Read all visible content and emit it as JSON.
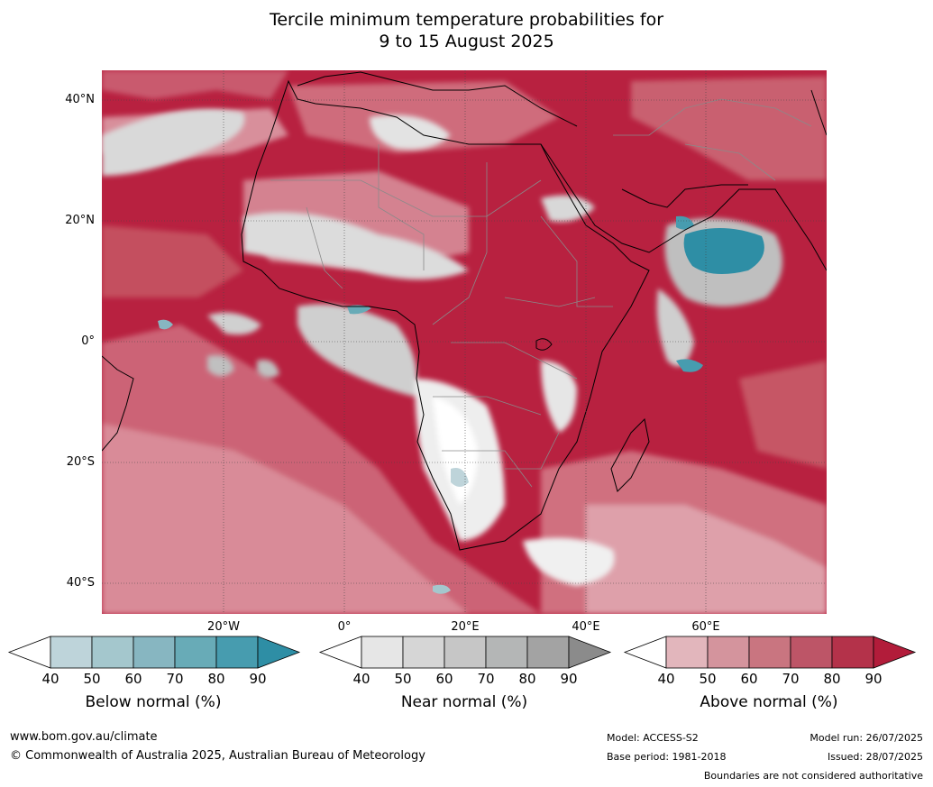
{
  "title_line1": "Tercile minimum temperature probabilities for",
  "title_line2": "9 to 15 August 2025",
  "lat_labels": [
    "40°N",
    "20°N",
    "0°",
    "20°S",
    "40°S"
  ],
  "lon_labels": [
    "20°W",
    "0°",
    "20°E",
    "40°E",
    "60°E"
  ],
  "legend": {
    "below": {
      "title": "Below normal (%)",
      "ticks": [
        "40",
        "50",
        "60",
        "70",
        "80",
        "90"
      ],
      "colors": [
        "#ffffff",
        "#bed4da",
        "#a4c7cd",
        "#87b6c1",
        "#68abb7",
        "#479caf",
        "#2e8ea5"
      ]
    },
    "near": {
      "title": "Near normal (%)",
      "ticks": [
        "40",
        "50",
        "60",
        "70",
        "80",
        "90"
      ],
      "colors": [
        "#ffffff",
        "#e6e6e6",
        "#d6d6d6",
        "#c6c6c6",
        "#b4b6b6",
        "#a3a3a3",
        "#8b8b8b"
      ]
    },
    "above": {
      "title": "Above normal (%)",
      "ticks": [
        "40",
        "50",
        "60",
        "70",
        "80",
        "90"
      ],
      "colors": [
        "#ffffff",
        "#e2b6bc",
        "#d4949d",
        "#c97580",
        "#bd5567",
        "#b4324a",
        "#b21c3a"
      ]
    }
  },
  "footer": {
    "website": "www.bom.gov.au/climate",
    "copyright": "© Commonwealth of Australia 2025, Australian Bureau of Meteorology",
    "model": "Model: ACCESS-S2",
    "base_period": "Base period: 1981-2018",
    "model_run": "Model run: 26/07/2025",
    "issued": "Issued: 28/07/2025",
    "disclaimer": "Boundaries are not considered authoritative"
  }
}
